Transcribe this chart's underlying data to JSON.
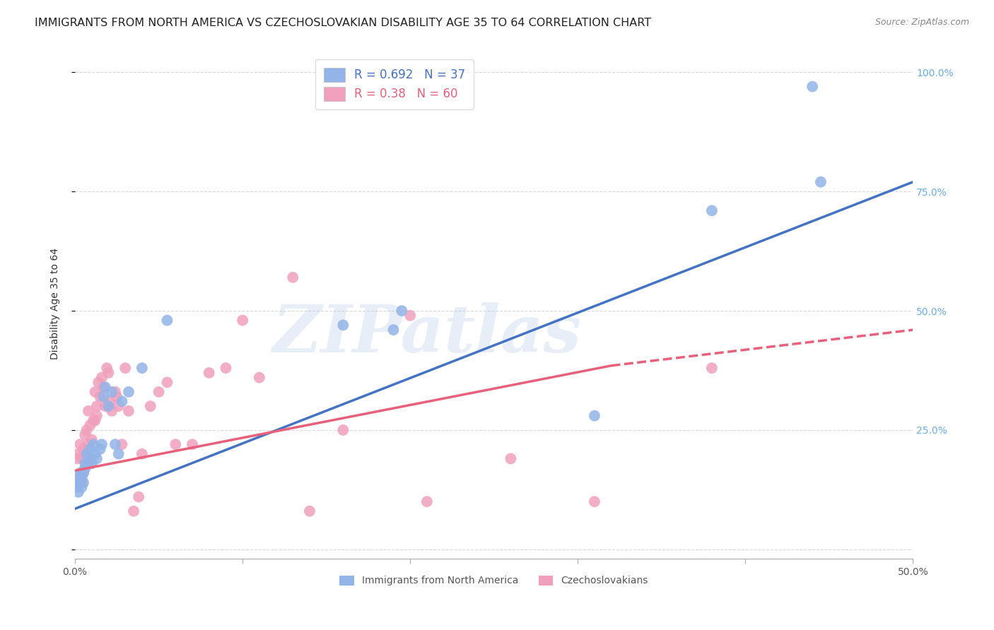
{
  "title": "IMMIGRANTS FROM NORTH AMERICA VS CZECHOSLOVAKIAN DISABILITY AGE 35 TO 64 CORRELATION CHART",
  "source": "Source: ZipAtlas.com",
  "ylabel": "Disability Age 35 to 64",
  "xlim": [
    0.0,
    0.5
  ],
  "ylim": [
    -0.02,
    1.05
  ],
  "blue_R": 0.692,
  "blue_N": 37,
  "pink_R": 0.38,
  "pink_N": 60,
  "blue_color": "#92b4e8",
  "pink_color": "#f0a0bc",
  "blue_line_color": "#4472C4",
  "pink_line_color": "#E8607A",
  "legend_label_blue": "Immigrants from North America",
  "legend_label_pink": "Czechoslovakians",
  "blue_scatter_x": [
    0.001,
    0.002,
    0.002,
    0.003,
    0.003,
    0.004,
    0.004,
    0.005,
    0.005,
    0.006,
    0.006,
    0.007,
    0.008,
    0.009,
    0.01,
    0.011,
    0.012,
    0.013,
    0.015,
    0.016,
    0.017,
    0.018,
    0.02,
    0.022,
    0.024,
    0.026,
    0.028,
    0.032,
    0.04,
    0.055,
    0.16,
    0.19,
    0.195,
    0.31,
    0.38,
    0.445,
    0.44
  ],
  "blue_scatter_y": [
    0.13,
    0.14,
    0.12,
    0.15,
    0.16,
    0.13,
    0.15,
    0.14,
    0.16,
    0.17,
    0.18,
    0.2,
    0.19,
    0.21,
    0.18,
    0.22,
    0.2,
    0.19,
    0.21,
    0.22,
    0.32,
    0.34,
    0.3,
    0.33,
    0.22,
    0.2,
    0.31,
    0.33,
    0.38,
    0.48,
    0.47,
    0.46,
    0.5,
    0.28,
    0.71,
    0.77,
    0.97
  ],
  "pink_scatter_x": [
    0.001,
    0.001,
    0.002,
    0.002,
    0.003,
    0.003,
    0.004,
    0.004,
    0.005,
    0.005,
    0.006,
    0.006,
    0.007,
    0.007,
    0.008,
    0.008,
    0.009,
    0.009,
    0.01,
    0.01,
    0.011,
    0.012,
    0.012,
    0.013,
    0.013,
    0.014,
    0.015,
    0.016,
    0.017,
    0.018,
    0.019,
    0.02,
    0.021,
    0.022,
    0.024,
    0.025,
    0.026,
    0.028,
    0.03,
    0.032,
    0.035,
    0.038,
    0.04,
    0.045,
    0.05,
    0.055,
    0.06,
    0.07,
    0.08,
    0.09,
    0.1,
    0.11,
    0.13,
    0.14,
    0.16,
    0.2,
    0.21,
    0.26,
    0.31,
    0.38
  ],
  "pink_scatter_y": [
    0.15,
    0.19,
    0.14,
    0.2,
    0.15,
    0.22,
    0.14,
    0.19,
    0.16,
    0.21,
    0.24,
    0.17,
    0.2,
    0.25,
    0.22,
    0.29,
    0.18,
    0.26,
    0.23,
    0.19,
    0.27,
    0.27,
    0.33,
    0.3,
    0.28,
    0.35,
    0.32,
    0.36,
    0.34,
    0.3,
    0.38,
    0.37,
    0.31,
    0.29,
    0.33,
    0.32,
    0.3,
    0.22,
    0.38,
    0.29,
    0.08,
    0.11,
    0.2,
    0.3,
    0.33,
    0.35,
    0.22,
    0.22,
    0.37,
    0.38,
    0.48,
    0.36,
    0.57,
    0.08,
    0.25,
    0.49,
    0.1,
    0.19,
    0.1,
    0.38
  ],
  "blue_line_x0": 0.0,
  "blue_line_y0": 0.085,
  "blue_line_x1": 0.5,
  "blue_line_y1": 0.77,
  "pink_line_x0": 0.0,
  "pink_line_y0": 0.165,
  "pink_line_x1_solid": 0.32,
  "pink_line_y1_solid": 0.385,
  "pink_line_x1_dash": 0.5,
  "pink_line_y1_dash": 0.46,
  "watermark_text": "ZIPatlas",
  "background_color": "#ffffff",
  "grid_color": "#d8d8d8",
  "title_fontsize": 11.5,
  "axis_label_fontsize": 10,
  "tick_label_fontsize": 10,
  "legend_fontsize": 12,
  "right_tick_color": "#6aadee"
}
